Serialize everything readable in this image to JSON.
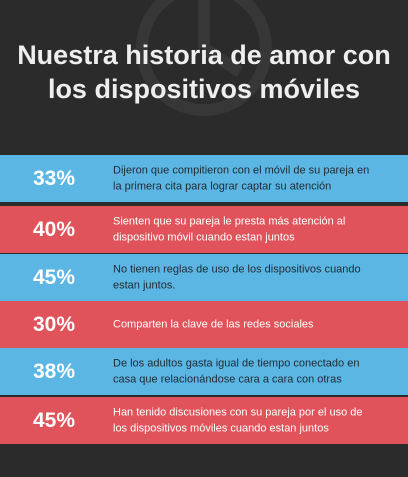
{
  "header": {
    "title_lines": [
      "Nuestra historia de amor con",
      "los dispositivos móviles"
    ]
  },
  "rows": [
    {
      "percent": "33%",
      "lines": [
        "Dijeron que  compitieron con el móvil de su pareja en",
        "la primera cita para lograr captar su atención"
      ]
    },
    {
      "percent": "40%",
      "lines": [
        "Sienten que su pareja le presta más atención al",
        "dispositivo móvil cuando estan juntos"
      ]
    },
    {
      "percent": "45%",
      "lines": [
        "No tienen reglas de uso de los dispositivos cuando",
        "estan juntos."
      ]
    },
    {
      "percent": "30%",
      "lines": [
        "Comparten la clave de las redes sociales"
      ]
    },
    {
      "percent": "38%",
      "lines": [
        "De los adultos gasta igual de tiempo conectado en",
        "casa que relacionándose cara a cara con otras"
      ]
    },
    {
      "percent": "45%",
      "lines": [
        "Han tenido discusiones con su pareja por el uso de",
        "los dispositivos móviles cuando estan juntos"
      ]
    }
  ]
}
